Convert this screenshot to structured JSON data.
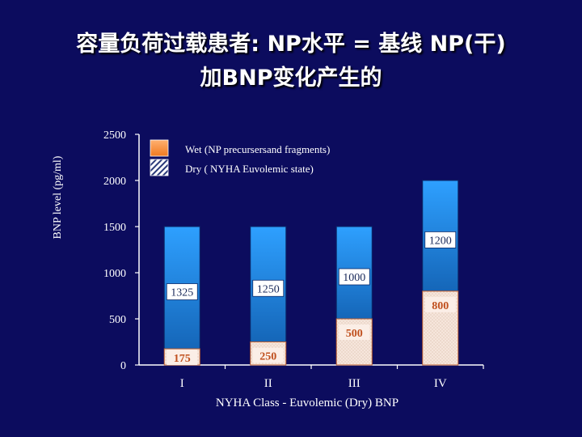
{
  "slide": {
    "title_line1": "容量负荷过载患者: NP水平 = 基线 NP(干)",
    "title_line2": "加BNP变化产生的"
  },
  "chart_data": {
    "type": "bar",
    "stacked": true,
    "xlabel": "NYHA Class - Euvolemic (Dry) BNP",
    "ylabel": "BNP level (pg/ml)",
    "ylim": [
      0,
      2500
    ],
    "yticks": [
      0,
      500,
      1000,
      1500,
      2000,
      2500
    ],
    "categories": [
      "I",
      "II",
      "III",
      "IV"
    ],
    "series": [
      {
        "name": "Dry ( NYHA Euvolemic state)",
        "values": [
          175,
          250,
          500,
          800
        ],
        "color": "#f2ddd0"
      },
      {
        "name": "Wet (NP precursersand fragments)",
        "values": [
          1325,
          1250,
          1000,
          1200
        ],
        "color": "#1f7fd6"
      }
    ],
    "legend_position": "top-left",
    "grid": false
  }
}
